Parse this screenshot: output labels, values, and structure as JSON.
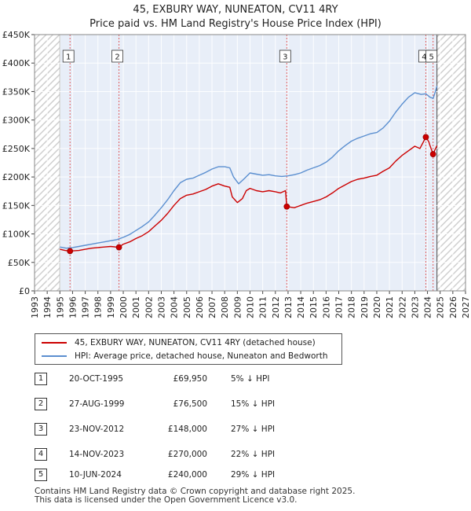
{
  "title": {
    "line1": "45, EXBURY WAY, NUNEATON, CV11 4RY",
    "line2": "Price paid vs. HM Land Registry's House Price Index (HPI)"
  },
  "chart_data": {
    "type": "line",
    "x_range": [
      1993,
      2027
    ],
    "y_range": [
      0,
      450000
    ],
    "x_ticks": [
      "1993",
      "1994",
      "1995",
      "1996",
      "1997",
      "1998",
      "1999",
      "2000",
      "2001",
      "2002",
      "2003",
      "2004",
      "2005",
      "2006",
      "2007",
      "2008",
      "2009",
      "2010",
      "2011",
      "2012",
      "2013",
      "2014",
      "2015",
      "2016",
      "2017",
      "2018",
      "2019",
      "2020",
      "2021",
      "2022",
      "2023",
      "2024",
      "2025",
      "2026",
      "2027"
    ],
    "y_ticks": [
      {
        "value": 0,
        "label": "£0"
      },
      {
        "value": 50000,
        "label": "£50K"
      },
      {
        "value": 100000,
        "label": "£100K"
      },
      {
        "value": 150000,
        "label": "£150K"
      },
      {
        "value": 200000,
        "label": "£200K"
      },
      {
        "value": 250000,
        "label": "£250K"
      },
      {
        "value": 300000,
        "label": "£300K"
      },
      {
        "value": 350000,
        "label": "£350K"
      },
      {
        "value": 400000,
        "label": "£400K"
      },
      {
        "value": 450000,
        "label": "£450K"
      }
    ],
    "data_start": 1995.0,
    "data_end": 2024.75,
    "grid": true,
    "series": [
      {
        "name": "45, EXBURY WAY, NUNEATON, CV11 4RY (detached house)",
        "color": "#cc0000",
        "points": [
          [
            1995.0,
            73000
          ],
          [
            1995.4,
            71000
          ],
          [
            1995.8,
            69950
          ],
          [
            1996.5,
            71000
          ],
          [
            1997.0,
            73000
          ],
          [
            1997.5,
            75000
          ],
          [
            1998.0,
            76000
          ],
          [
            1998.5,
            77000
          ],
          [
            1999.0,
            78000
          ],
          [
            1999.66,
            76500
          ],
          [
            2000.0,
            82000
          ],
          [
            2000.5,
            86000
          ],
          [
            2001.0,
            92000
          ],
          [
            2001.5,
            97000
          ],
          [
            2002.0,
            104000
          ],
          [
            2002.5,
            114000
          ],
          [
            2003.0,
            124000
          ],
          [
            2003.5,
            136000
          ],
          [
            2004.0,
            150000
          ],
          [
            2004.5,
            162000
          ],
          [
            2005.0,
            168000
          ],
          [
            2005.5,
            170000
          ],
          [
            2006.0,
            174000
          ],
          [
            2006.5,
            178000
          ],
          [
            2007.0,
            184000
          ],
          [
            2007.5,
            188000
          ],
          [
            2008.0,
            184000
          ],
          [
            2008.4,
            182000
          ],
          [
            2008.6,
            165000
          ],
          [
            2009.0,
            155000
          ],
          [
            2009.4,
            162000
          ],
          [
            2009.7,
            176000
          ],
          [
            2010.0,
            180000
          ],
          [
            2010.5,
            176000
          ],
          [
            2011.0,
            174000
          ],
          [
            2011.5,
            176000
          ],
          [
            2012.0,
            174000
          ],
          [
            2012.4,
            172000
          ],
          [
            2012.8,
            176000
          ],
          [
            2012.9,
            148000
          ],
          [
            2013.5,
            146000
          ],
          [
            2014.0,
            150000
          ],
          [
            2014.5,
            154000
          ],
          [
            2015.0,
            157000
          ],
          [
            2015.5,
            160000
          ],
          [
            2016.0,
            165000
          ],
          [
            2016.5,
            172000
          ],
          [
            2017.0,
            180000
          ],
          [
            2017.5,
            186000
          ],
          [
            2018.0,
            192000
          ],
          [
            2018.5,
            196000
          ],
          [
            2019.0,
            198000
          ],
          [
            2019.5,
            201000
          ],
          [
            2020.0,
            203000
          ],
          [
            2020.5,
            210000
          ],
          [
            2021.0,
            216000
          ],
          [
            2021.5,
            228000
          ],
          [
            2022.0,
            238000
          ],
          [
            2022.5,
            246000
          ],
          [
            2023.0,
            254000
          ],
          [
            2023.4,
            250000
          ],
          [
            2023.87,
            270000
          ],
          [
            2024.1,
            262000
          ],
          [
            2024.2,
            255000
          ],
          [
            2024.44,
            240000
          ],
          [
            2024.6,
            248000
          ],
          [
            2024.75,
            255000
          ]
        ]
      },
      {
        "name": "HPI: Average price, detached house, Nuneaton and Bedworth",
        "color": "#5b8fd0",
        "points": [
          [
            1995.0,
            77000
          ],
          [
            1995.5,
            75000
          ],
          [
            1996.0,
            76000
          ],
          [
            1996.5,
            78000
          ],
          [
            1997.0,
            80000
          ],
          [
            1997.5,
            82000
          ],
          [
            1998.0,
            84000
          ],
          [
            1998.5,
            86000
          ],
          [
            1999.0,
            88000
          ],
          [
            1999.5,
            90000
          ],
          [
            2000.0,
            94000
          ],
          [
            2000.5,
            99000
          ],
          [
            2001.0,
            106000
          ],
          [
            2001.5,
            113000
          ],
          [
            2002.0,
            121000
          ],
          [
            2002.5,
            133000
          ],
          [
            2003.0,
            146000
          ],
          [
            2003.5,
            160000
          ],
          [
            2004.0,
            176000
          ],
          [
            2004.5,
            190000
          ],
          [
            2005.0,
            196000
          ],
          [
            2005.5,
            198000
          ],
          [
            2006.0,
            203000
          ],
          [
            2006.5,
            208000
          ],
          [
            2007.0,
            214000
          ],
          [
            2007.5,
            218000
          ],
          [
            2008.0,
            218000
          ],
          [
            2008.4,
            216000
          ],
          [
            2008.7,
            200000
          ],
          [
            2009.1,
            188000
          ],
          [
            2009.5,
            196000
          ],
          [
            2010.0,
            207000
          ],
          [
            2010.5,
            205000
          ],
          [
            2011.0,
            203000
          ],
          [
            2011.5,
            204000
          ],
          [
            2012.0,
            202000
          ],
          [
            2012.5,
            201000
          ],
          [
            2013.0,
            202000
          ],
          [
            2013.5,
            204000
          ],
          [
            2014.0,
            207000
          ],
          [
            2014.5,
            212000
          ],
          [
            2015.0,
            216000
          ],
          [
            2015.5,
            220000
          ],
          [
            2016.0,
            226000
          ],
          [
            2016.5,
            235000
          ],
          [
            2017.0,
            246000
          ],
          [
            2017.5,
            255000
          ],
          [
            2018.0,
            263000
          ],
          [
            2018.5,
            268000
          ],
          [
            2019.0,
            272000
          ],
          [
            2019.5,
            276000
          ],
          [
            2020.0,
            278000
          ],
          [
            2020.5,
            286000
          ],
          [
            2021.0,
            298000
          ],
          [
            2021.5,
            314000
          ],
          [
            2022.0,
            328000
          ],
          [
            2022.5,
            340000
          ],
          [
            2023.0,
            348000
          ],
          [
            2023.5,
            345000
          ],
          [
            2023.87,
            346000
          ],
          [
            2024.2,
            340000
          ],
          [
            2024.44,
            338000
          ],
          [
            2024.6,
            348000
          ],
          [
            2024.75,
            360000
          ]
        ]
      }
    ],
    "sales": [
      {
        "id": "1",
        "x": 1995.8,
        "price": 69950
      },
      {
        "id": "2",
        "x": 1999.66,
        "price": 76500
      },
      {
        "id": "3",
        "x": 2012.9,
        "price": 148000
      },
      {
        "id": "4",
        "x": 2023.87,
        "price": 270000
      },
      {
        "id": "5",
        "x": 2024.44,
        "price": 240000
      }
    ],
    "label_value": 410000
  },
  "legend": {
    "property": "45, EXBURY WAY, NUNEATON, CV11 4RY (detached house)",
    "hpi": "HPI: Average price, detached house, Nuneaton and Bedworth"
  },
  "transactions": [
    {
      "num": "1",
      "date": "20-OCT-1995",
      "price": "£69,950",
      "hpi": "5% ↓ HPI"
    },
    {
      "num": "2",
      "date": "27-AUG-1999",
      "price": "£76,500",
      "hpi": "15% ↓ HPI"
    },
    {
      "num": "3",
      "date": "23-NOV-2012",
      "price": "£148,000",
      "hpi": "27% ↓ HPI"
    },
    {
      "num": "4",
      "date": "14-NOV-2023",
      "price": "£270,000",
      "hpi": "22% ↓ HPI"
    },
    {
      "num": "5",
      "date": "10-JUN-2024",
      "price": "£240,000",
      "hpi": "29% ↓ HPI"
    }
  ],
  "footer": {
    "line1": "Contains HM Land Registry data © Crown copyright and database right 2025.",
    "line2": "This data is licensed under the Open Government Licence v3.0."
  },
  "colors": {
    "property": "#cc0000",
    "hpi": "#5b8fd0",
    "plot_bg": "#e8eef8",
    "hatch": "#d4d4d4"
  }
}
